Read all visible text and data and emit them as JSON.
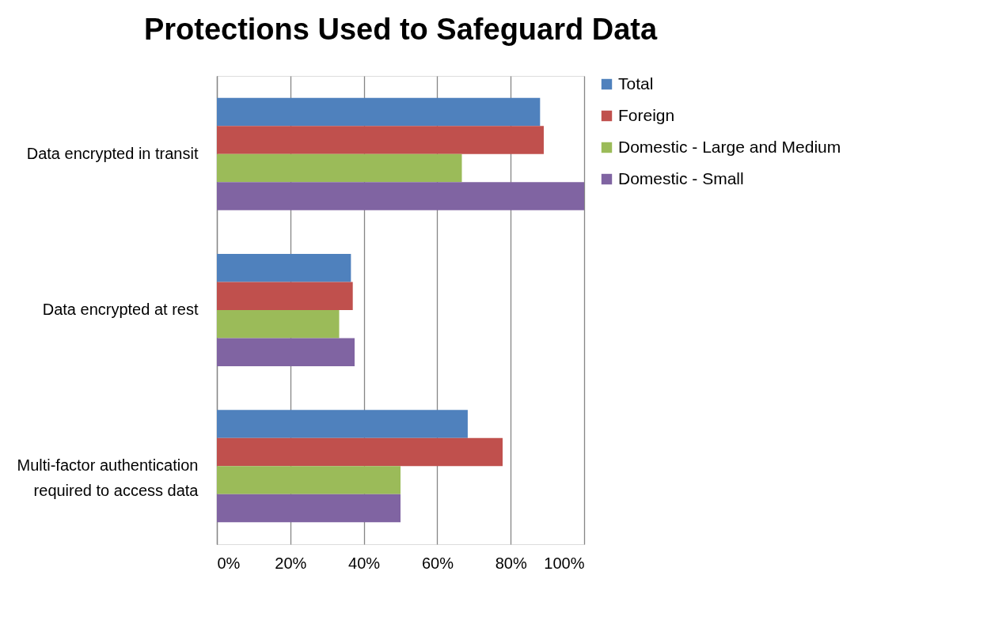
{
  "chart_data": {
    "type": "bar",
    "orientation": "horizontal",
    "title": "Protections Used to Safeguard Data",
    "categories": [
      "Data encrypted in transit",
      "Data encrypted at rest",
      "Multi-factor authentication required to access data"
    ],
    "series": [
      {
        "name": "Total",
        "color": "#4f81bd",
        "values": [
          88,
          36.5,
          68.3
        ]
      },
      {
        "name": "Foreign",
        "color": "#c0504d",
        "values": [
          89,
          37,
          77.8
        ]
      },
      {
        "name": "Domestic - Large and Medium",
        "color": "#9bbb59",
        "values": [
          66.7,
          33.3,
          50
        ]
      },
      {
        "name": "Domestic - Small",
        "color": "#8064a2",
        "values": [
          100,
          37.5,
          50
        ]
      }
    ],
    "xlim": [
      0,
      100
    ],
    "xticks": [
      {
        "value": 0,
        "label": "0%"
      },
      {
        "value": 20,
        "label": "20%"
      },
      {
        "value": 40,
        "label": "40%"
      },
      {
        "value": 60,
        "label": "60%"
      },
      {
        "value": 80,
        "label": "80%"
      },
      {
        "value": 100,
        "label": "100%"
      }
    ],
    "grid": "x",
    "legend": "right"
  }
}
